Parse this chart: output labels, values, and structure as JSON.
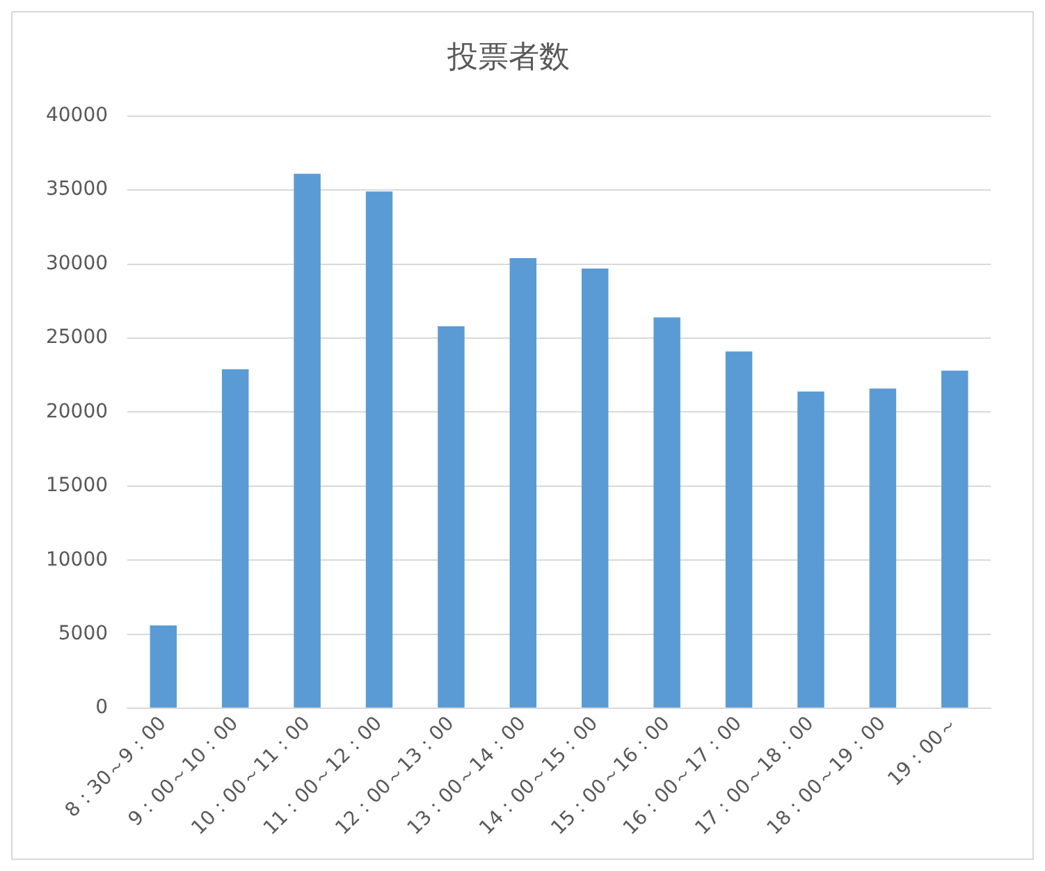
{
  "chart_data": {
    "type": "bar",
    "title": "投票者数",
    "categories": [
      "8：30～9：00",
      "9：00～10：00",
      "10：00～11：00",
      "11：00～12：00",
      "12：00～13：00",
      "13：00～14：00",
      "14：00～15：00",
      "15：00～16：00",
      "16：00～17：00",
      "17：00～18：00",
      "18：00～19：00",
      "19：00～"
    ],
    "values": [
      5600,
      22900,
      36100,
      34900,
      25800,
      30400,
      29700,
      26400,
      24100,
      21400,
      21600,
      22800
    ],
    "color": "#5b9bd5",
    "ylim": [
      0,
      40000
    ],
    "yticks": [
      0,
      5000,
      10000,
      15000,
      20000,
      25000,
      30000,
      35000,
      40000
    ],
    "grid": "y",
    "legend": false
  }
}
